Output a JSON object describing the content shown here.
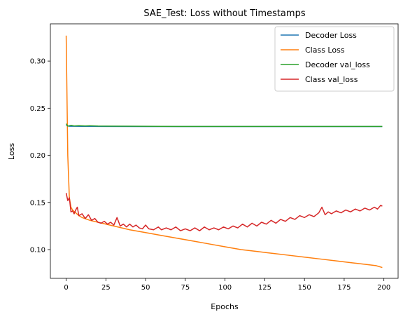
{
  "chart_data": {
    "type": "line",
    "title": "SAE_Test: Loss without Timestamps",
    "xlabel": "Epochs",
    "ylabel": "Loss",
    "xlim": [
      -9.95,
      208.95
    ],
    "ylim": [
      0.0695,
      0.3395
    ],
    "xticks": [
      0,
      25,
      50,
      75,
      100,
      125,
      150,
      175,
      200
    ],
    "yticks": [
      0.1,
      0.15,
      0.2,
      0.25,
      0.3
    ],
    "ytick_labels": [
      "0.10",
      "0.15",
      "0.20",
      "0.25",
      "0.30"
    ],
    "grid": false,
    "legend_position": "top-right",
    "series": [
      {
        "name": "Decoder Loss",
        "color": "#1f77b4",
        "points": [
          [
            0,
            0.232
          ],
          [
            1,
            0.2312
          ],
          [
            2,
            0.2308
          ],
          [
            5,
            0.2308
          ],
          [
            20,
            0.2306
          ],
          [
            50,
            0.2305
          ],
          [
            100,
            0.2305
          ],
          [
            150,
            0.2305
          ],
          [
            199,
            0.2305
          ]
        ]
      },
      {
        "name": "Class Loss",
        "color": "#ff7f0e",
        "points": [
          [
            0,
            0.327
          ],
          [
            1,
            0.2
          ],
          [
            2,
            0.155
          ],
          [
            3,
            0.145
          ],
          [
            4,
            0.142
          ],
          [
            6,
            0.139
          ],
          [
            8,
            0.136
          ],
          [
            10,
            0.134
          ],
          [
            15,
            0.131
          ],
          [
            20,
            0.129
          ],
          [
            30,
            0.125
          ],
          [
            40,
            0.121
          ],
          [
            50,
            0.118
          ],
          [
            60,
            0.115
          ],
          [
            70,
            0.112
          ],
          [
            80,
            0.109
          ],
          [
            90,
            0.106
          ],
          [
            100,
            0.103
          ],
          [
            110,
            0.1
          ],
          [
            120,
            0.098
          ],
          [
            130,
            0.096
          ],
          [
            140,
            0.094
          ],
          [
            150,
            0.092
          ],
          [
            160,
            0.09
          ],
          [
            170,
            0.088
          ],
          [
            180,
            0.086
          ],
          [
            190,
            0.084
          ],
          [
            195,
            0.083
          ],
          [
            199,
            0.081
          ]
        ]
      },
      {
        "name": "Decoder val_loss",
        "color": "#2ca02c",
        "points": [
          [
            0,
            0.2335
          ],
          [
            1,
            0.231
          ],
          [
            3,
            0.2318
          ],
          [
            5,
            0.2312
          ],
          [
            8,
            0.2315
          ],
          [
            12,
            0.2312
          ],
          [
            15,
            0.2314
          ],
          [
            20,
            0.2311
          ],
          [
            25,
            0.231
          ],
          [
            40,
            0.2309
          ],
          [
            60,
            0.2307
          ],
          [
            100,
            0.2306
          ],
          [
            150,
            0.2306
          ],
          [
            199,
            0.2306
          ]
        ]
      },
      {
        "name": "Class val_loss",
        "color": "#d62728",
        "points": [
          [
            0,
            0.16
          ],
          [
            1,
            0.152
          ],
          [
            2,
            0.155
          ],
          [
            3,
            0.14
          ],
          [
            4,
            0.141
          ],
          [
            5,
            0.138
          ],
          [
            6,
            0.142
          ],
          [
            7,
            0.145
          ],
          [
            8,
            0.136
          ],
          [
            10,
            0.138
          ],
          [
            12,
            0.133
          ],
          [
            14,
            0.137
          ],
          [
            16,
            0.131
          ],
          [
            18,
            0.133
          ],
          [
            20,
            0.129
          ],
          [
            22,
            0.128
          ],
          [
            24,
            0.13
          ],
          [
            26,
            0.127
          ],
          [
            28,
            0.129
          ],
          [
            30,
            0.126
          ],
          [
            32,
            0.134
          ],
          [
            34,
            0.125
          ],
          [
            36,
            0.127
          ],
          [
            38,
            0.124
          ],
          [
            40,
            0.127
          ],
          [
            42,
            0.124
          ],
          [
            44,
            0.126
          ],
          [
            46,
            0.123
          ],
          [
            48,
            0.122
          ],
          [
            50,
            0.126
          ],
          [
            52,
            0.122
          ],
          [
            55,
            0.121
          ],
          [
            58,
            0.124
          ],
          [
            60,
            0.121
          ],
          [
            63,
            0.123
          ],
          [
            66,
            0.121
          ],
          [
            69,
            0.124
          ],
          [
            72,
            0.12
          ],
          [
            75,
            0.122
          ],
          [
            78,
            0.12
          ],
          [
            81,
            0.123
          ],
          [
            84,
            0.12
          ],
          [
            87,
            0.124
          ],
          [
            90,
            0.121
          ],
          [
            93,
            0.123
          ],
          [
            96,
            0.121
          ],
          [
            99,
            0.124
          ],
          [
            102,
            0.122
          ],
          [
            105,
            0.125
          ],
          [
            108,
            0.123
          ],
          [
            111,
            0.127
          ],
          [
            114,
            0.124
          ],
          [
            117,
            0.128
          ],
          [
            120,
            0.125
          ],
          [
            123,
            0.129
          ],
          [
            126,
            0.127
          ],
          [
            129,
            0.131
          ],
          [
            132,
            0.128
          ],
          [
            135,
            0.132
          ],
          [
            138,
            0.13
          ],
          [
            141,
            0.134
          ],
          [
            144,
            0.132
          ],
          [
            147,
            0.136
          ],
          [
            150,
            0.134
          ],
          [
            153,
            0.137
          ],
          [
            156,
            0.135
          ],
          [
            159,
            0.139
          ],
          [
            161,
            0.145
          ],
          [
            163,
            0.137
          ],
          [
            165,
            0.14
          ],
          [
            167,
            0.138
          ],
          [
            170,
            0.141
          ],
          [
            173,
            0.139
          ],
          [
            176,
            0.142
          ],
          [
            179,
            0.14
          ],
          [
            182,
            0.143
          ],
          [
            185,
            0.141
          ],
          [
            188,
            0.144
          ],
          [
            191,
            0.142
          ],
          [
            194,
            0.145
          ],
          [
            196,
            0.143
          ],
          [
            198,
            0.147
          ],
          [
            199,
            0.146
          ]
        ]
      }
    ]
  }
}
